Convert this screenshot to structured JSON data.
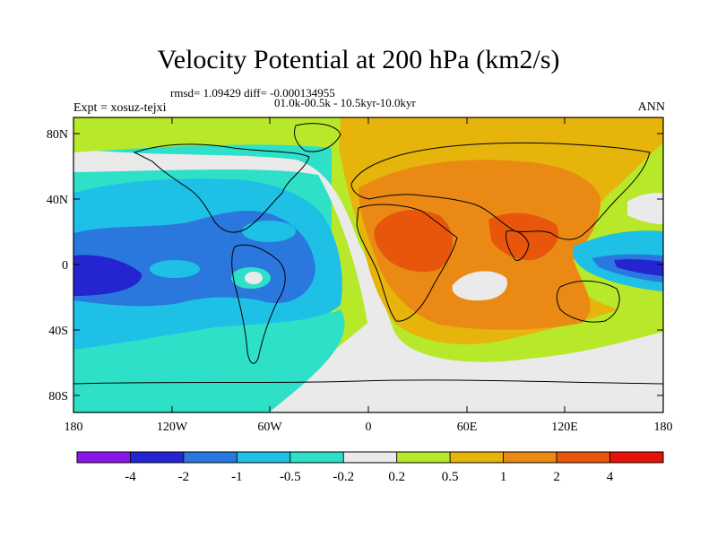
{
  "title": "Velocity Potential at 200 hPa (km2/s)",
  "rmsd_line": "rmsd= 1.09429 diff= -0.000134955",
  "subtitle": "01.0k-00.5k - 10.5kyr-10.0kyr",
  "experiment": "Expt = xosuz-tejxi",
  "season": "ANN",
  "map_data": {
    "type": "filled-contour-map",
    "projection": "cylindrical-equidistant",
    "lon_range": [
      -180,
      180
    ],
    "lat_range": [
      -90,
      90
    ],
    "x_tick_labels": [
      "180",
      "120W",
      "60W",
      "0",
      "60E",
      "120E",
      "180"
    ],
    "y_tick_labels": [
      "80N",
      "40N",
      "0",
      "40S",
      "80S"
    ]
  },
  "colorbar": {
    "colors": [
      "#8a17e8",
      "#2424d0",
      "#2a78de",
      "#1ec0e6",
      "#2ee0c8",
      "#eaeaea",
      "#b8e82a",
      "#e6b40a",
      "#ea8a14",
      "#e8560c",
      "#e81208"
    ],
    "labels": [
      "-4",
      "-2",
      "-1",
      "-0.5",
      "-0.2",
      "0.2",
      "0.5",
      "1",
      "2",
      "4"
    ]
  }
}
